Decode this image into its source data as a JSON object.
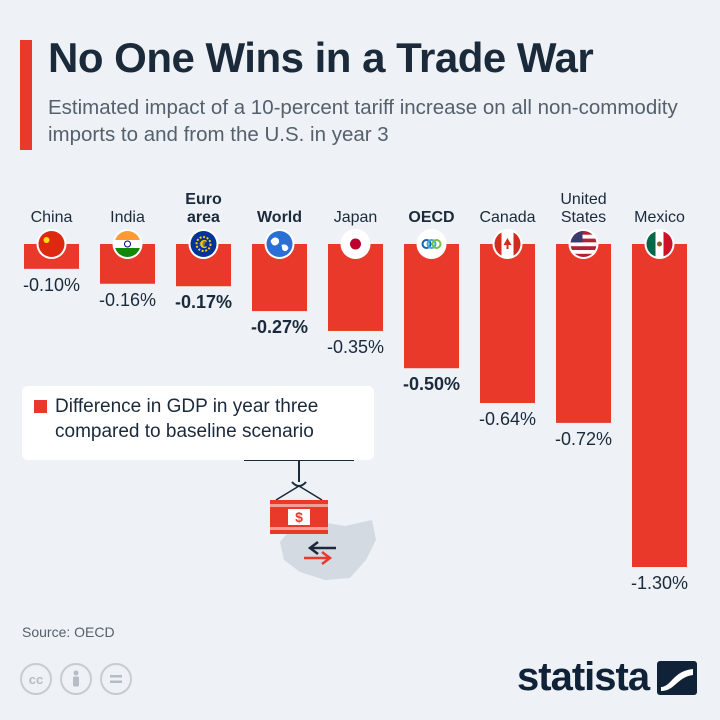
{
  "header": {
    "title": "No One Wins in a Trade War",
    "subtitle": "Estimated impact of a 10-percent tariff increase on all non-commodity imports to and from the U.S. in year 3"
  },
  "legend": {
    "label": "Difference in GDP in year three compared to baseline scenario"
  },
  "source": "Source: OECD",
  "brand": {
    "name": "statista"
  },
  "license_icons": [
    "cc-icon",
    "attribution-icon",
    "no-derivatives-icon"
  ],
  "colors": {
    "bar": "#e8392b",
    "text": "#1b2a3b",
    "background": "#eef2f6"
  },
  "chart_data": {
    "type": "bar",
    "orientation": "downward",
    "categories": [
      "China",
      "India",
      "Euro area",
      "World",
      "Japan",
      "OECD",
      "Canada",
      "United States",
      "Mexico"
    ],
    "values": [
      -0.1,
      -0.16,
      -0.17,
      -0.27,
      -0.35,
      -0.5,
      -0.64,
      -0.72,
      -1.3
    ],
    "value_labels": [
      "-0.10%",
      "-0.16%",
      "-0.17%",
      "-0.27%",
      "-0.35%",
      "-0.50%",
      "-0.64%",
      "-0.72%",
      "-1.30%"
    ],
    "bold_categories": [
      "Euro area",
      "World",
      "OECD"
    ],
    "flag_icons": [
      "china-flag-icon",
      "india-flag-icon",
      "euro-flag-icon",
      "world-icon",
      "japan-flag-icon",
      "oecd-icon",
      "canada-flag-icon",
      "usa-flag-icon",
      "mexico-flag-icon"
    ],
    "series": [
      {
        "name": "Difference in GDP in year three compared to baseline scenario",
        "values": [
          -0.1,
          -0.16,
          -0.17,
          -0.27,
          -0.35,
          -0.5,
          -0.64,
          -0.72,
          -1.3
        ]
      }
    ],
    "ylim": [
      -1.3,
      0
    ],
    "grid": false,
    "legend_position": "left"
  }
}
